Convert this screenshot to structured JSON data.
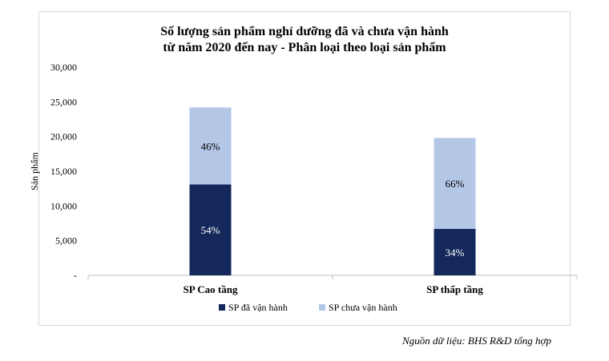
{
  "title_lines": [
    "Số lượng sản phẩm nghỉ dưỡng đã và chưa vận hành",
    "từ năm 2020 đến nay - Phân loại theo loại sản phẩm"
  ],
  "source_note": "Nguồn dữ liệu: BHS R&D tổng hợp",
  "chart_data": {
    "type": "bar",
    "stacked": true,
    "title": "Số lượng sản phẩm nghỉ dưỡng đã và chưa vận hành từ năm 2020 đến nay - Phân loại theo loại sản phẩm",
    "categories": [
      "SP Cao tầng",
      "SP thấp tầng"
    ],
    "ylabel": "Sản phẩm",
    "xlabel": "",
    "ylim": [
      0,
      30000
    ],
    "yticks": [
      0,
      5000,
      10000,
      15000,
      20000,
      25000,
      30000
    ],
    "ytick_labels": [
      "-",
      "5,000",
      "10,000",
      "15,000",
      "20,000",
      "25,000",
      "30,000"
    ],
    "series": [
      {
        "name": "SP đã vận hành",
        "color": "#14285c",
        "label_color": "#ffffff",
        "values": [
          13100,
          6700
        ],
        "labels": [
          "54%",
          "34%"
        ]
      },
      {
        "name": "SP chưa vận hành",
        "color": "#b4c7e7",
        "label_color": "#000000",
        "values": [
          11100,
          13100
        ],
        "labels": [
          "46%",
          "66%"
        ]
      }
    ],
    "grid": false,
    "legend_position": "bottom"
  }
}
